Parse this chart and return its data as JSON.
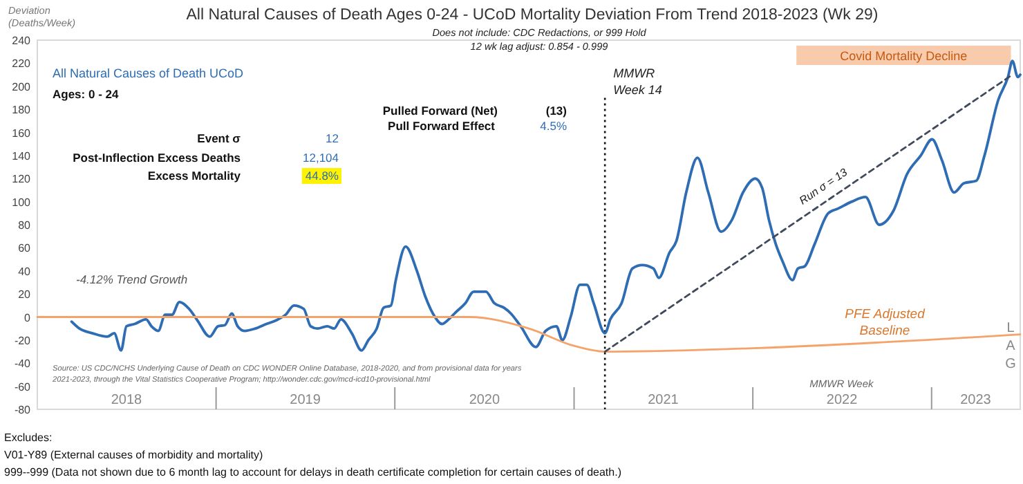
{
  "chart_data": {
    "type": "line",
    "title": "All Natural Causes of Death Ages 0-24 - UCoD Mortality Deviation From Trend  2018-2023 (Wk 29)",
    "subtitle": "Does not include: CDC Redactions, or 999 Hold\n12 wk lag adjust: 0.854 - 0.999",
    "ylabel": "Deviation\n(Deaths/Week)",
    "xlabel": "MMWR Week",
    "xlim": [
      "2018-01-01",
      "2023-07-01"
    ],
    "xticks": [
      {
        "value": "2018-07-02",
        "label": "2018"
      },
      {
        "value": "2019-01-01",
        "label": null
      },
      {
        "value": "2019-07-02",
        "label": "2019"
      },
      {
        "value": "2020-01-01",
        "label": null
      },
      {
        "value": "2020-07-02",
        "label": "2020"
      },
      {
        "value": "2021-01-01",
        "label": null
      },
      {
        "value": "2021-07-02",
        "label": "2021"
      },
      {
        "value": "2022-01-01",
        "label": null
      },
      {
        "value": "2022-07-02",
        "label": "2022"
      },
      {
        "value": "2023-01-01",
        "label": null
      },
      {
        "value": "2023-04-01",
        "label": "2023"
      }
    ],
    "ylim": [
      -80,
      240
    ],
    "yticks": [
      -80,
      -60,
      -40,
      -20,
      0,
      20,
      40,
      60,
      80,
      100,
      120,
      140,
      160,
      180,
      200,
      220,
      240
    ],
    "series": [
      {
        "name": "All Natural Causes of Death UCoD",
        "color": "#2e6db4",
        "x": [
          "2018-03-12",
          "2018-03-28",
          "2018-04-23",
          "2018-05-24",
          "2018-06-07",
          "2018-06-21",
          "2018-07-02",
          "2018-07-19",
          "2018-08-11",
          "2018-08-22",
          "2018-09-05",
          "2018-09-19",
          "2018-10-03",
          "2018-10-18",
          "2018-11-07",
          "2018-11-24",
          "2018-12-19",
          "2019-01-05",
          "2019-01-19",
          "2019-02-02",
          "2019-02-14",
          "2019-02-28",
          "2019-03-22",
          "2019-04-14",
          "2019-05-03",
          "2019-05-23",
          "2019-06-09",
          "2019-06-29",
          "2019-07-13",
          "2019-07-27",
          "2019-08-16",
          "2019-08-30",
          "2019-09-13",
          "2019-10-05",
          "2019-10-25",
          "2019-11-08",
          "2019-11-25",
          "2019-12-09",
          "2019-12-24",
          "2020-01-03",
          "2020-01-23",
          "2020-02-15",
          "2020-03-03",
          "2020-03-23",
          "2020-04-06",
          "2020-04-20",
          "2020-05-04",
          "2020-05-24",
          "2020-06-10",
          "2020-07-05",
          "2020-07-22",
          "2020-08-11",
          "2020-08-25",
          "2020-09-14",
          "2020-10-15",
          "2020-11-04",
          "2020-11-26",
          "2020-12-08",
          "2020-12-25",
          "2021-01-13",
          "2021-01-27",
          "2021-02-10",
          "2021-03-05",
          "2021-03-16",
          "2021-04-08",
          "2021-04-30",
          "2021-05-20",
          "2021-06-12",
          "2021-06-23",
          "2021-07-15",
          "2021-07-29",
          "2021-08-18",
          "2021-09-10",
          "2021-10-02",
          "2021-10-28",
          "2021-11-19",
          "2021-12-12",
          "2022-01-06",
          "2022-01-20",
          "2022-02-03",
          "2022-02-17",
          "2022-03-03",
          "2022-03-23",
          "2022-04-03",
          "2022-04-17",
          "2022-05-07",
          "2022-06-04",
          "2022-06-24",
          "2022-07-22",
          "2022-08-19",
          "2022-09-16",
          "2022-10-15",
          "2022-11-12",
          "2022-12-10",
          "2023-01-02",
          "2023-01-22",
          "2023-02-16",
          "2023-03-08",
          "2023-04-02",
          "2023-04-19",
          "2023-05-17",
          "2023-06-06",
          "2023-06-15",
          "2023-06-26",
          "2023-07-01"
        ],
        "values": [
          -4,
          -10,
          -14,
          -17,
          -14,
          -29,
          -8,
          -6,
          -2,
          -8,
          -12,
          2,
          2,
          13,
          7,
          -3,
          -17,
          -8,
          -7,
          3,
          -8,
          -12,
          -10,
          -6,
          -3,
          2,
          10,
          7,
          -8,
          -10,
          -8,
          -10,
          -2,
          -14,
          -29,
          -20,
          -10,
          8,
          10,
          32,
          61,
          40,
          18,
          0,
          -6,
          -2,
          4,
          12,
          22,
          22,
          12,
          8,
          3,
          -8,
          -26,
          -12,
          -8,
          -20,
          0,
          28,
          28,
          12,
          -14,
          -2,
          12,
          42,
          45,
          42,
          34,
          56,
          66,
          108,
          138,
          108,
          74,
          84,
          108,
          120,
          112,
          84,
          63,
          48,
          32,
          42,
          44,
          63,
          90,
          94,
          100,
          104,
          80,
          92,
          124,
          140,
          154,
          136,
          108,
          116,
          118,
          140,
          188,
          208,
          222,
          208,
          210
        ]
      },
      {
        "name": "PFE Adjusted\nBaseline",
        "color": "#f4a46a",
        "x": [
          "2018-01-01",
          "2020-06-01",
          "2020-10-01",
          "2021-01-01",
          "2021-03-05",
          "2022-01-01",
          "2023-07-01"
        ],
        "values": [
          0,
          0,
          -10,
          -25,
          -30,
          -27,
          -15
        ]
      },
      {
        "color": "#404a5c",
        "line_style": "dashed",
        "x": [
          "2021-03-05",
          "2023-06-15"
        ],
        "values": [
          -30,
          210
        ]
      }
    ],
    "ref_lines": [
      {
        "axis": "x",
        "value": "2021-03-05",
        "label": "MMWR\nWeek 14",
        "color": "#111111",
        "line_style": "dotted"
      }
    ],
    "bands": [
      {
        "axis": "x",
        "from": "2022-03-31",
        "to": "2023-06-12",
        "label": "Covid Mortality Decline",
        "color": "#f8cbad"
      }
    ],
    "annotations": [
      "Ages: 0 - 24",
      "Pulled Forward (Net)",
      "(13)",
      "Pull Forward Effect",
      "4.5%",
      "Event σ",
      "12",
      "Post-Inflection Excess Deaths",
      "12,104",
      "Excess Mortality",
      "44.8%",
      "-4.12% Trend Growth",
      "Source: US CDC/NCHS Underlying Cause of Death on CDC WONDER Online Database, 2018-2020, and from provisional data for years\n2021-2023, through the Vital Statistics Cooperative Program; http://wonder.cdc.gov/mcd-icd10-provisional.html",
      "LAG",
      "Run σ = 13",
      "Excludes:\nV01-Y89 (External causes of morbidity and mortality)\n999--999 (Data not shown due to 6 month lag to account for delays in death certificate completion for certain causes of death.)"
    ]
  }
}
